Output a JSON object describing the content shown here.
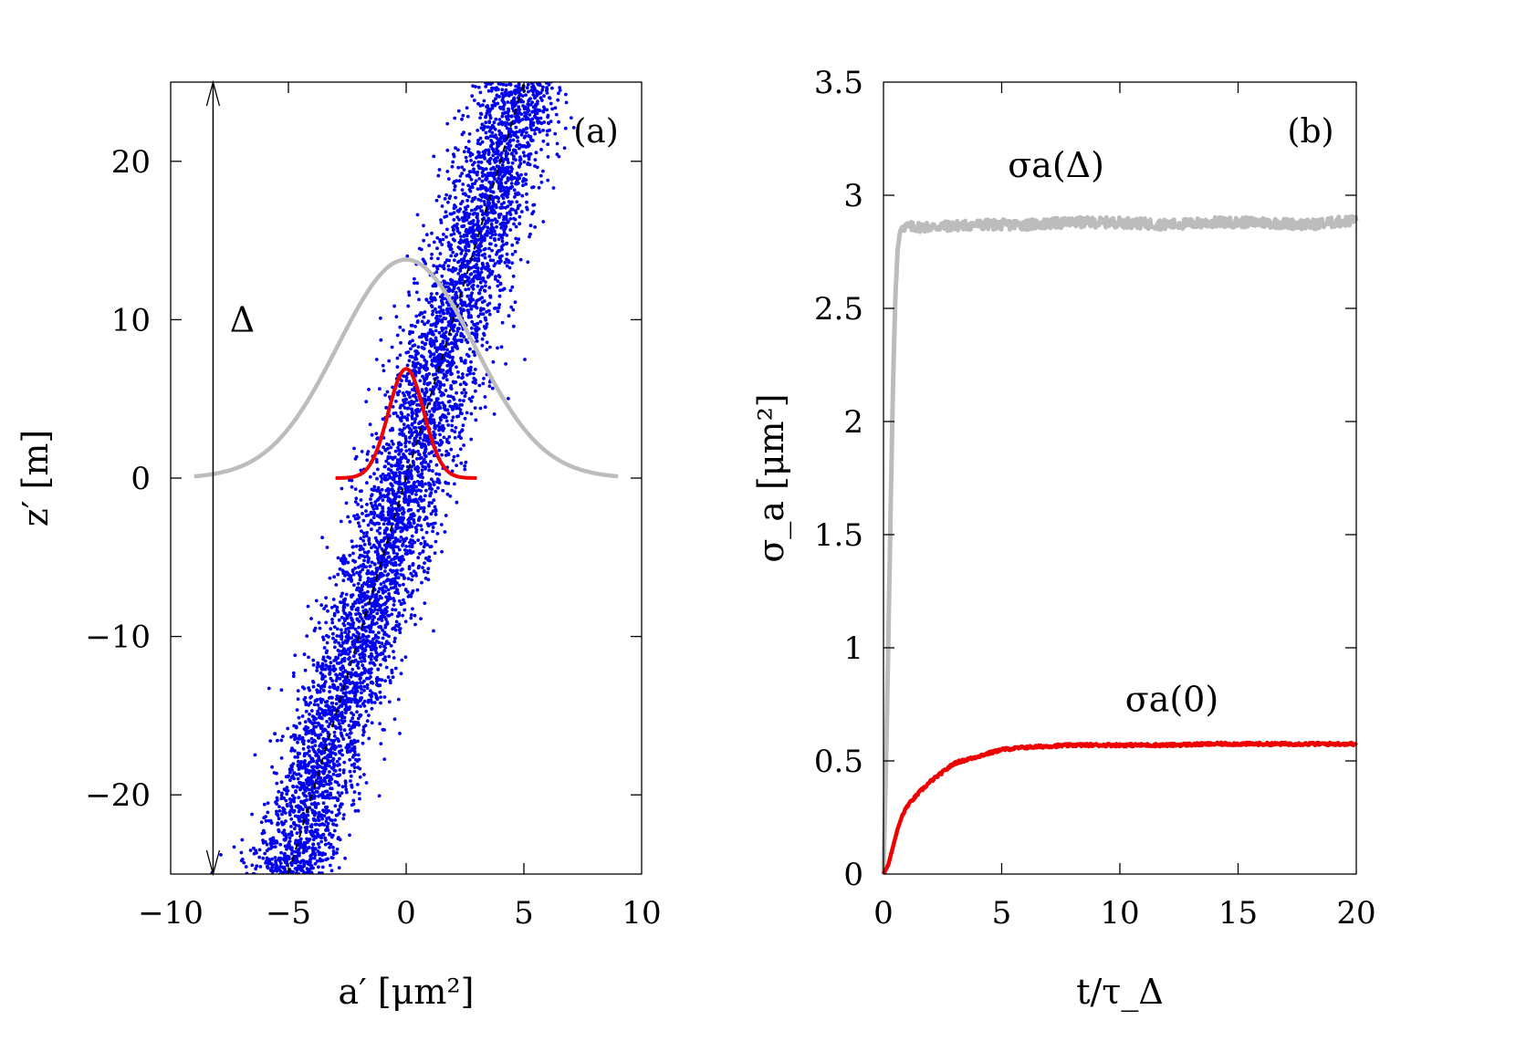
{
  "chart_data": [
    {
      "type": "scatter",
      "panel_label": "(a)",
      "xlabel": "a′ [μm²]",
      "ylabel": "z′ [m]",
      "xlim": [
        -10,
        10
      ],
      "ylim": [
        -25,
        25
      ],
      "xticks": [
        -10,
        -5,
        0,
        5,
        10
      ],
      "xtick_labels": [
        "−10",
        "−5",
        "0",
        "5",
        "10"
      ],
      "yticks": [
        -20,
        -10,
        0,
        10,
        20
      ],
      "ytick_labels": [
        "−20",
        "−10",
        "0",
        "10",
        "20"
      ],
      "grid": false,
      "colors": {
        "scatter": "#0000ee",
        "gray_curve": "#bcbcbc",
        "red_curve": "#ee0000",
        "fit_line": "#000000"
      },
      "series": [
        {
          "kind": "scatter-band",
          "color": "#0000ee",
          "center_line": [
            [
              -5,
              -25
            ],
            [
              5,
              25
            ]
          ],
          "band_half_width_x": 1.3,
          "approx_points": 5500
        },
        {
          "kind": "dashed-line",
          "color": "#000000",
          "x": [
            -5,
            5
          ],
          "y": [
            -25,
            25
          ]
        },
        {
          "kind": "gaussian-curve",
          "color": "#bcbcbc",
          "x_range": [
            -9,
            9
          ],
          "mean": 0,
          "sigma": 2.9,
          "baseline": 0,
          "peak": 13.8
        },
        {
          "kind": "gaussian-curve",
          "color": "#ee0000",
          "x_range": [
            -3,
            3
          ],
          "mean": 0,
          "sigma": 0.75,
          "baseline": 0,
          "peak": 6.9
        }
      ],
      "annotations": [
        {
          "text": "Δ",
          "kind": "double-arrow",
          "x": -8.2,
          "y_from": -25,
          "y_to": 25,
          "label_y": 10
        }
      ]
    },
    {
      "type": "line",
      "panel_label": "(b)",
      "xlabel": "t/τ_Δ",
      "ylabel": "σ_a [μm²]",
      "xlim": [
        0,
        20
      ],
      "ylim": [
        0,
        3.5
      ],
      "xticks": [
        0,
        5,
        10,
        15,
        20
      ],
      "xtick_labels": [
        "0",
        "5",
        "10",
        "15",
        "20"
      ],
      "yticks": [
        0,
        0.5,
        1,
        1.5,
        2,
        2.5,
        3,
        3.5
      ],
      "ytick_labels": [
        "0",
        "0.5",
        "1",
        "1.5",
        "2",
        "2.5",
        "3",
        "3.5"
      ],
      "grid": false,
      "series": [
        {
          "name": "σa(Δ)",
          "color": "#bcbcbc",
          "x": [
            0,
            0.1,
            0.2,
            0.3,
            0.4,
            0.5,
            0.6,
            0.7,
            0.8,
            1,
            2,
            4,
            6,
            8,
            10,
            12,
            14,
            16,
            18,
            20
          ],
          "y": [
            0,
            0.45,
            1.0,
            1.6,
            2.15,
            2.55,
            2.76,
            2.84,
            2.86,
            2.86,
            2.86,
            2.87,
            2.87,
            2.88,
            2.88,
            2.87,
            2.88,
            2.88,
            2.87,
            2.89
          ]
        },
        {
          "name": "σa(0)",
          "color": "#ee0000",
          "x": [
            0,
            0.2,
            0.4,
            0.6,
            0.8,
            1,
            1.5,
            2,
            2.5,
            3,
            4,
            5,
            6,
            8,
            10,
            12,
            14,
            16,
            18,
            20
          ],
          "y": [
            0,
            0.04,
            0.12,
            0.2,
            0.26,
            0.3,
            0.36,
            0.41,
            0.45,
            0.49,
            0.52,
            0.55,
            0.56,
            0.57,
            0.57,
            0.57,
            0.575,
            0.575,
            0.575,
            0.575
          ]
        }
      ],
      "annotations": [
        {
          "text": "σa(Δ)",
          "x": 7.3,
          "y": 3.08
        },
        {
          "text": "σa(0)",
          "x": 12.2,
          "y": 0.72
        }
      ]
    }
  ]
}
